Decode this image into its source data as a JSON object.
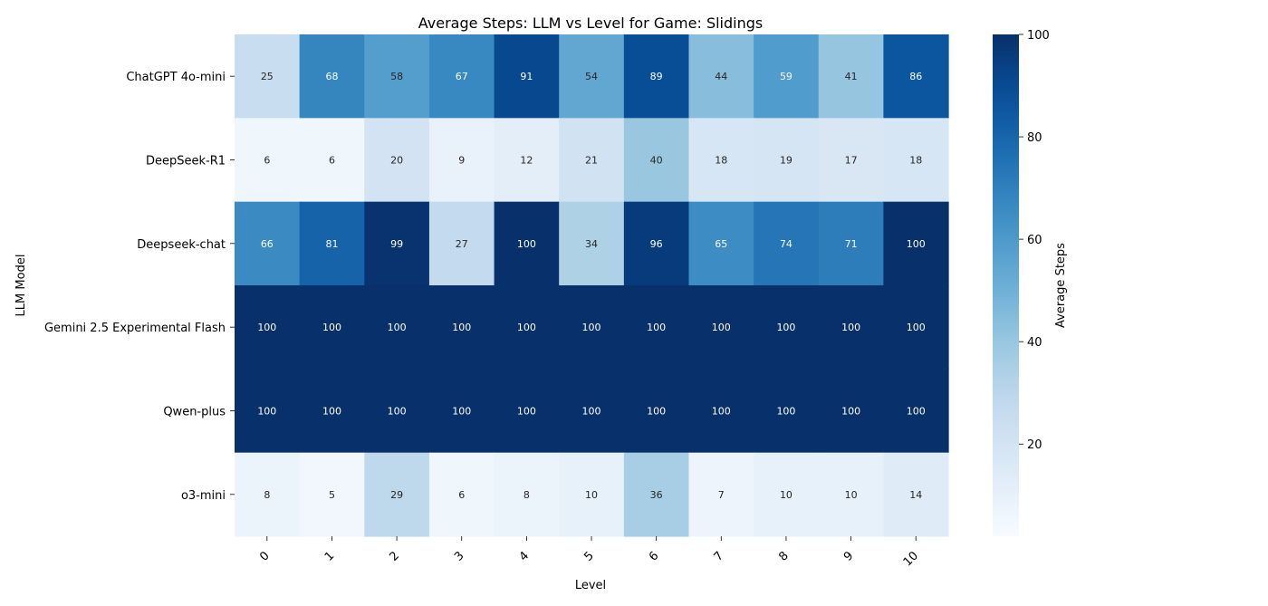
{
  "chart_data": {
    "type": "heatmap",
    "title": "Average Steps: LLM vs Level for Game: Slidings",
    "xlabel": "Level",
    "ylabel": "LLM Model",
    "x_categories": [
      "0",
      "1",
      "2",
      "3",
      "4",
      "5",
      "6",
      "7",
      "8",
      "9",
      "10"
    ],
    "y_categories": [
      "ChatGPT 4o-mini",
      "DeepSeek-R1",
      "Deepseek-chat",
      "Gemini 2.5 Experimental Flash",
      "Qwen-plus",
      "o3-mini"
    ],
    "values": [
      [
        25,
        68,
        58,
        67,
        91,
        54,
        89,
        44,
        59,
        41,
        86
      ],
      [
        6,
        6,
        20,
        9,
        12,
        21,
        40,
        18,
        19,
        17,
        18
      ],
      [
        66,
        81,
        99,
        27,
        100,
        34,
        96,
        65,
        74,
        71,
        100
      ],
      [
        100,
        100,
        100,
        100,
        100,
        100,
        100,
        100,
        100,
        100,
        100
      ],
      [
        100,
        100,
        100,
        100,
        100,
        100,
        100,
        100,
        100,
        100,
        100
      ],
      [
        8,
        5,
        29,
        6,
        8,
        10,
        36,
        7,
        10,
        10,
        14
      ]
    ],
    "colormap": "Blues",
    "vmin": 2,
    "vmax": 100,
    "colorbar": {
      "label": "Average Steps",
      "ticks": [
        20,
        40,
        60,
        80,
        100
      ]
    },
    "grid": false
  }
}
